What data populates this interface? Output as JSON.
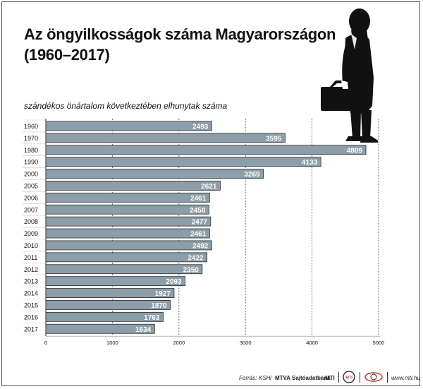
{
  "title_line1": "Az öngyilkosságok száma Magyarországon",
  "title_line2": "(1960–2017)",
  "subtitle": "szándékos önártalom következtében elhunytak száma",
  "colors": {
    "bar": "#8c9ea9",
    "bar_edge": "#2b2b2b",
    "label_bg": "#8c9ea9",
    "label_text": "#ffffff",
    "grid": "#555555"
  },
  "chart_data": {
    "type": "bar",
    "orientation": "horizontal",
    "title": "Az öngyilkosságok száma Magyarországon (1960–2017)",
    "subtitle": "szándékos önártalom következtében elhunytak száma",
    "categories": [
      "1960",
      "1970",
      "1980",
      "1990",
      "2000",
      "2005",
      "2006",
      "2007",
      "2008",
      "2009",
      "2010",
      "2011",
      "2012",
      "2013",
      "2014",
      "2015",
      "2016",
      "2017"
    ],
    "values": [
      2493,
      3595,
      4809,
      4133,
      3269,
      2621,
      2461,
      2450,
      2477,
      2461,
      2492,
      2422,
      2350,
      2093,
      1927,
      1870,
      1763,
      1634
    ],
    "xlim": [
      0,
      5000
    ],
    "xticks": [
      0,
      1000,
      2000,
      3000,
      4000,
      5000
    ],
    "xlabel": "",
    "ylabel": "",
    "grid": "vertical dashed",
    "legend": "none"
  },
  "footer": {
    "source_label": "Forrás:",
    "source_value": "KSH",
    "sep": "/",
    "org1": "MTVA Sajtóadatbank",
    "org2": "MTI",
    "logo1_text": "MTI",
    "website": "www.mti.hu"
  },
  "icons": {
    "person": "man-with-briefcase-silhouette-icon",
    "logo1": "mti-round-logo-icon",
    "logo2": "mti-ring-logo-icon"
  }
}
